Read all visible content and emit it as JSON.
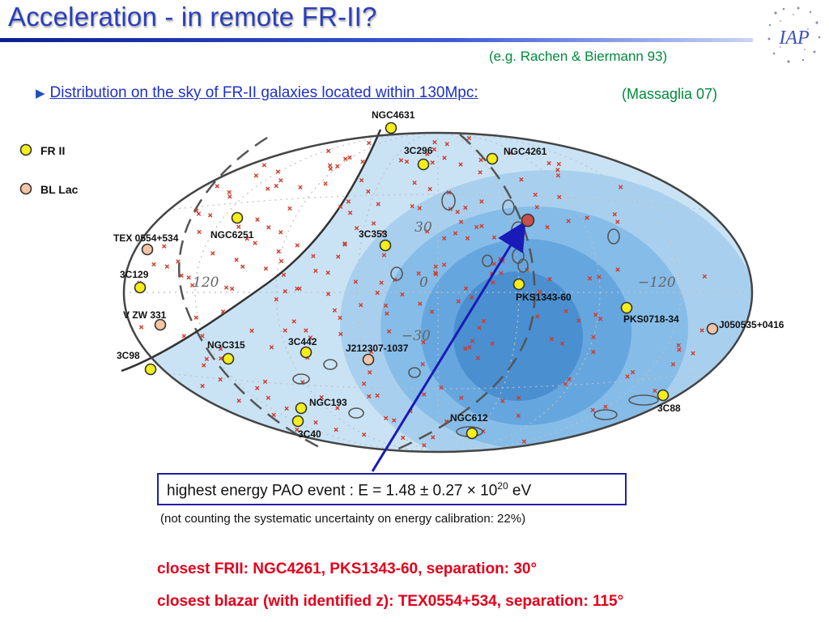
{
  "slide": {
    "title": "Acceleration - in remote FR-II?",
    "reference_top": "(e.g. Rachen & Biermann 93)",
    "bullet_text": "Distribution on the sky of FR-II galaxies located within 130Mpc:",
    "reference_bullet": "(Massaglia 07)",
    "logo_text": "IAP"
  },
  "legend": [
    {
      "label": "FR II",
      "color": "#f5ee1a"
    },
    {
      "label": "BL Lac",
      "color": "#f4c4a4"
    }
  ],
  "grid_labels": [
    "30",
    "0",
    "−30",
    "120",
    "−120"
  ],
  "sources": [
    {
      "label": "NGC4631",
      "type": "FRII"
    },
    {
      "label": "3C296",
      "type": "FRII"
    },
    {
      "label": "NGC4261",
      "type": "FRII"
    },
    {
      "label": "NGC6251",
      "type": "FRII"
    },
    {
      "label": "TEX 0554+534",
      "type": "BLLac"
    },
    {
      "label": "3C353",
      "type": "FRII"
    },
    {
      "label": "3C129",
      "type": "FRII"
    },
    {
      "label": "PKS1343-60",
      "type": "FRII"
    },
    {
      "label": "V ZW 331",
      "type": "BLLac"
    },
    {
      "label": "PKS0718-34",
      "type": "FRII"
    },
    {
      "label": "J050535+0416",
      "type": "BLLac"
    },
    {
      "label": "NGC315",
      "type": "FRII"
    },
    {
      "label": "3C442",
      "type": "FRII"
    },
    {
      "label": "J212307-1037",
      "type": "BLLac"
    },
    {
      "label": "3C98",
      "type": "FRII"
    },
    {
      "label": "NGC193",
      "type": "FRII"
    },
    {
      "label": "3C40",
      "type": "FRII"
    },
    {
      "label": "NGC612",
      "type": "FRII"
    },
    {
      "label": "3C88",
      "type": "FRII"
    }
  ],
  "event": {
    "prefix": "highest energy PAO event :   E = 1.48 ± 0.27 × 10",
    "exponent": "20",
    "suffix": " eV",
    "note": "(not counting the systematic uncertainty on energy calibration: 22%)"
  },
  "results": {
    "line1": "closest FRII: NGC4261, PKS1343-60, separation: 30°",
    "line2": "closest blazar (with identified z): TEX0554+534, separation: 115°"
  },
  "colors": {
    "title": "#2b3fb8",
    "reference": "#008a3c",
    "link": "#1f30c8",
    "result": "#e3001b",
    "arrow": "#1a1ab8",
    "event_marker": "#c8504a"
  }
}
